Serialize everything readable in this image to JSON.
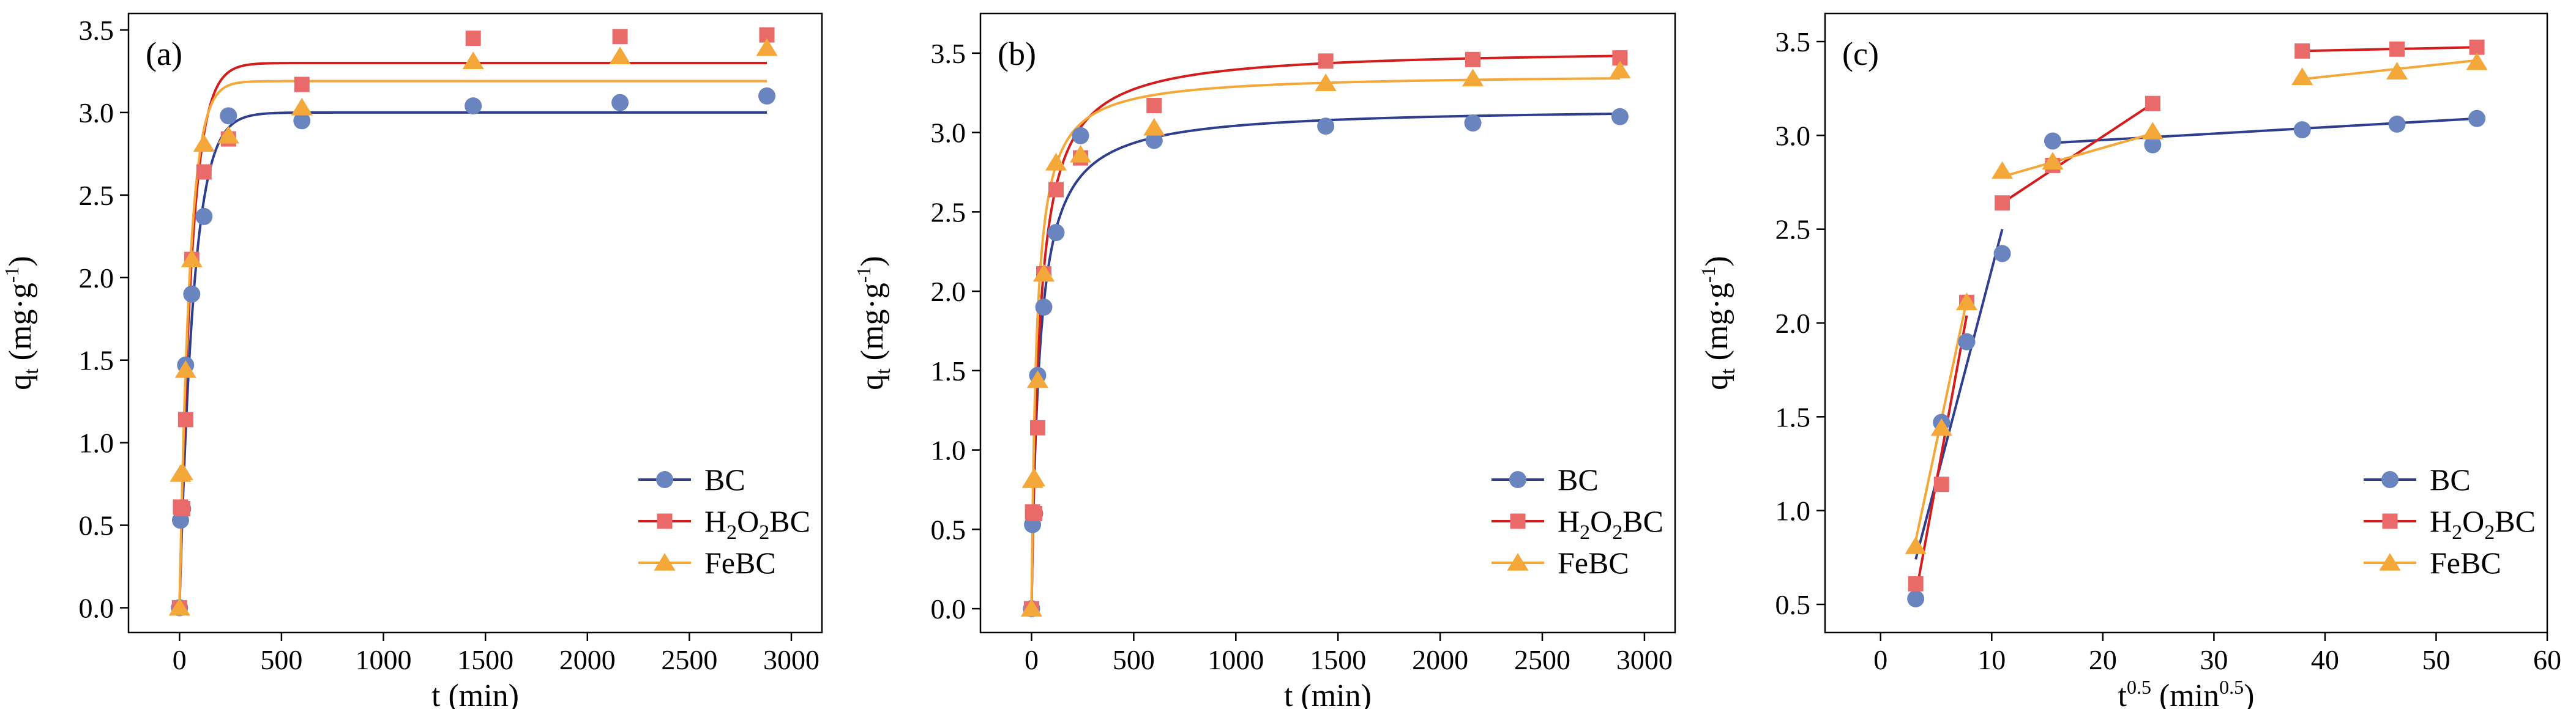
{
  "figure": {
    "colors": {
      "BC": "#6a84c0",
      "H2O2BC": "#ea6a6a",
      "FeBC": "#f5a83a"
    },
    "fit_colors": {
      "BC": "#2f3f8f",
      "H2O2BC": "#d41c1c",
      "FeBC": "#f5a83a"
    }
  },
  "chart_data": [
    {
      "type": "scatter",
      "panel_label": "(a)",
      "title": "",
      "xlabel": "t (min)",
      "ylabel": "qt (mg·g-1)",
      "xlim": [
        -250,
        3150
      ],
      "ylim": [
        -0.15,
        3.6
      ],
      "xticks": [
        "0",
        "500",
        "1000",
        "1500",
        "2000",
        "2500",
        "3000"
      ],
      "yticks": [
        "0.0",
        "0.5",
        "1.0",
        "1.5",
        "2.0",
        "2.5",
        "3.0",
        "3.5"
      ],
      "legend": [
        "BC",
        "H2O2BC",
        "FeBC"
      ],
      "legend_position": "bottom-right",
      "series": [
        {
          "name": "BC",
          "marker": "circle",
          "x": [
            0,
            5,
            15,
            30,
            60,
            120,
            240,
            600,
            1440,
            2160,
            2880
          ],
          "y": [
            0,
            0.53,
            0.6,
            1.47,
            1.9,
            2.37,
            2.98,
            2.95,
            3.04,
            3.06,
            3.1
          ],
          "fit": {
            "model": "pseudo-first-order",
            "qe": 3.0,
            "k": 0.0145
          }
        },
        {
          "name": "H2O2BC",
          "marker": "square",
          "x": [
            0,
            5,
            15,
            30,
            60,
            120,
            240,
            600,
            1440,
            2160,
            2880
          ],
          "y": [
            0,
            0.61,
            0.6,
            1.14,
            2.11,
            2.64,
            2.84,
            3.17,
            3.45,
            3.46,
            3.47
          ],
          "fit": {
            "model": "pseudo-first-order",
            "qe": 3.3,
            "k": 0.017
          }
        },
        {
          "name": "FeBC",
          "marker": "triangle",
          "x": [
            0,
            5,
            15,
            30,
            60,
            120,
            240,
            600,
            1440,
            2160,
            2880
          ],
          "y": [
            0,
            0.81,
            0.82,
            1.44,
            2.11,
            2.81,
            2.86,
            3.03,
            3.31,
            3.34,
            3.39
          ],
          "fit": {
            "model": "pseudo-first-order",
            "qe": 3.19,
            "k": 0.02
          }
        }
      ]
    },
    {
      "type": "scatter",
      "panel_label": "(b)",
      "title": "",
      "xlabel": "t (min)",
      "ylabel": "qt (mg·g-1)",
      "xlim": [
        -250,
        3150
      ],
      "ylim": [
        -0.15,
        3.75
      ],
      "xticks": [
        "0",
        "500",
        "1000",
        "1500",
        "2000",
        "2500",
        "3000"
      ],
      "yticks": [
        "0.0",
        "0.5",
        "1.0",
        "1.5",
        "2.0",
        "2.5",
        "3.0",
        "3.5"
      ],
      "legend": [
        "BC",
        "H2O2BC",
        "FeBC"
      ],
      "legend_position": "bottom-right",
      "series": [
        {
          "name": "BC",
          "marker": "circle",
          "x": [
            0,
            5,
            15,
            30,
            60,
            120,
            240,
            600,
            1440,
            2160,
            2880
          ],
          "y": [
            0,
            0.53,
            0.6,
            1.47,
            1.9,
            2.37,
            2.98,
            2.95,
            3.04,
            3.06,
            3.1
          ],
          "fit": {
            "model": "pseudo-second-order",
            "qe": 3.16,
            "k": 0.0082
          }
        },
        {
          "name": "H2O2BC",
          "marker": "square",
          "x": [
            0,
            5,
            15,
            30,
            60,
            120,
            240,
            600,
            1440,
            2160,
            2880
          ],
          "y": [
            0,
            0.61,
            0.6,
            1.14,
            2.11,
            2.64,
            2.84,
            3.17,
            3.45,
            3.46,
            3.47
          ],
          "fit": {
            "model": "pseudo-second-order",
            "qe": 3.53,
            "k": 0.0072
          }
        },
        {
          "name": "FeBC",
          "marker": "triangle",
          "x": [
            0,
            5,
            15,
            30,
            60,
            120,
            240,
            600,
            1440,
            2160,
            2880
          ],
          "y": [
            0,
            0.81,
            0.82,
            1.44,
            2.11,
            2.81,
            2.86,
            3.03,
            3.31,
            3.34,
            3.39
          ],
          "fit": {
            "model": "pseudo-second-order",
            "qe": 3.37,
            "k": 0.012
          }
        }
      ]
    },
    {
      "type": "scatter",
      "panel_label": "(c)",
      "title": "",
      "xlabel": "t0.5 (min0.5)",
      "ylabel": "qt (mg·g-1)",
      "xlim": [
        -5,
        60
      ],
      "ylim": [
        0.35,
        3.65
      ],
      "xticks": [
        "0",
        "10",
        "20",
        "30",
        "40",
        "50",
        "60"
      ],
      "yticks": [
        "0.5",
        "1.0",
        "1.5",
        "2.0",
        "2.5",
        "3.0",
        "3.5"
      ],
      "legend": [
        "BC",
        "H2O2BC",
        "FeBC"
      ],
      "legend_position": "bottom-right",
      "series": [
        {
          "name": "BC",
          "marker": "circle",
          "x": [
            3.16,
            5.48,
            7.75,
            10.95,
            15.49,
            24.49,
            37.95,
            46.48,
            53.67
          ],
          "y": [
            0.53,
            1.47,
            1.9,
            2.37,
            2.97,
            2.95,
            3.03,
            3.06,
            3.09
          ],
          "segments": [
            [
              [
                3.16,
                0.74
              ],
              [
                10.95,
                2.5
              ]
            ],
            [
              [
                15.49,
                2.96
              ],
              [
                53.67,
                3.09
              ]
            ]
          ]
        },
        {
          "name": "H2O2BC",
          "marker": "square",
          "x": [
            3.16,
            5.48,
            7.75,
            10.95,
            15.49,
            24.49,
            37.95,
            46.48,
            53.67
          ],
          "y": [
            0.61,
            1.14,
            2.11,
            2.64,
            2.84,
            3.17,
            3.45,
            3.46,
            3.47
          ],
          "segments": [
            [
              [
                3.16,
                0.55
              ],
              [
                7.75,
                2.04
              ]
            ],
            [
              [
                10.95,
                2.64
              ],
              [
                24.49,
                3.17
              ]
            ],
            [
              [
                37.95,
                3.45
              ],
              [
                53.67,
                3.47
              ]
            ]
          ]
        },
        {
          "name": "FeBC",
          "marker": "triangle",
          "x": [
            3.16,
            5.48,
            7.75,
            10.95,
            15.49,
            24.49,
            37.95,
            46.48,
            53.67
          ],
          "y": [
            0.81,
            1.44,
            2.11,
            2.81,
            2.86,
            3.02,
            3.31,
            3.34,
            3.39
          ],
          "segments": [
            [
              [
                3.16,
                0.84
              ],
              [
                7.75,
                2.12
              ]
            ],
            [
              [
                10.95,
                2.78
              ],
              [
                24.49,
                3.01
              ]
            ],
            [
              [
                37.95,
                3.3
              ],
              [
                53.67,
                3.4
              ]
            ]
          ]
        }
      ]
    }
  ]
}
